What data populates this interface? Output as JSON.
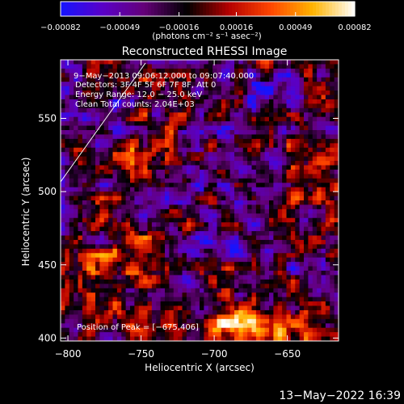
{
  "chart_data": {
    "type": "heatmap",
    "title": "Reconstructed RHESSI Image",
    "xlabel": "Heliocentric X (arcsec)",
    "ylabel": "Heliocentric Y (arcsec)",
    "xlim": [
      -805,
      -615
    ],
    "ylim": [
      398,
      590
    ],
    "x_ticks": [
      -800,
      -750,
      -700,
      -650
    ],
    "y_ticks": [
      400,
      450,
      500,
      550
    ],
    "x_tick_labels": [
      "−800",
      "−750",
      "−700",
      "−650"
    ],
    "y_tick_labels": [
      "400",
      "450",
      "500",
      "550"
    ],
    "colorbar": {
      "min": -0.00082,
      "max": 0.00082,
      "tick_values": [
        -0.00082,
        -0.00049,
        -0.00016,
        0.00016,
        0.00049,
        0.00082
      ],
      "tick_labels": [
        "−0.00082",
        "−0.00049",
        "−0.00016",
        "0.00016",
        "0.00049",
        "0.00082"
      ],
      "unit_label": "(photons cm⁻² s⁻¹ asec⁻²)"
    },
    "annotations": {
      "time_range": "9−May−2013 09:06:12.000  to 09:07:40.000",
      "detectors": "Detectors: 3F 4F 5F 6F 7F 8F, Att 0",
      "energy_range": "Energy Range: 12.0 − 25.0 keV",
      "method": "Clean     Total counts: 2.04E+03",
      "peak_position": "Position of Peak = [−675,406]"
    },
    "peak": [
      -675,
      406
    ],
    "footer_date": "13−May−2022 16:39"
  },
  "colors": {
    "background": "#000000",
    "colormap": [
      "#1414ff",
      "#5a00c8",
      "#640078",
      "#000000",
      "#b40000",
      "#ff4600",
      "#ffb400",
      "#ffffff"
    ]
  }
}
